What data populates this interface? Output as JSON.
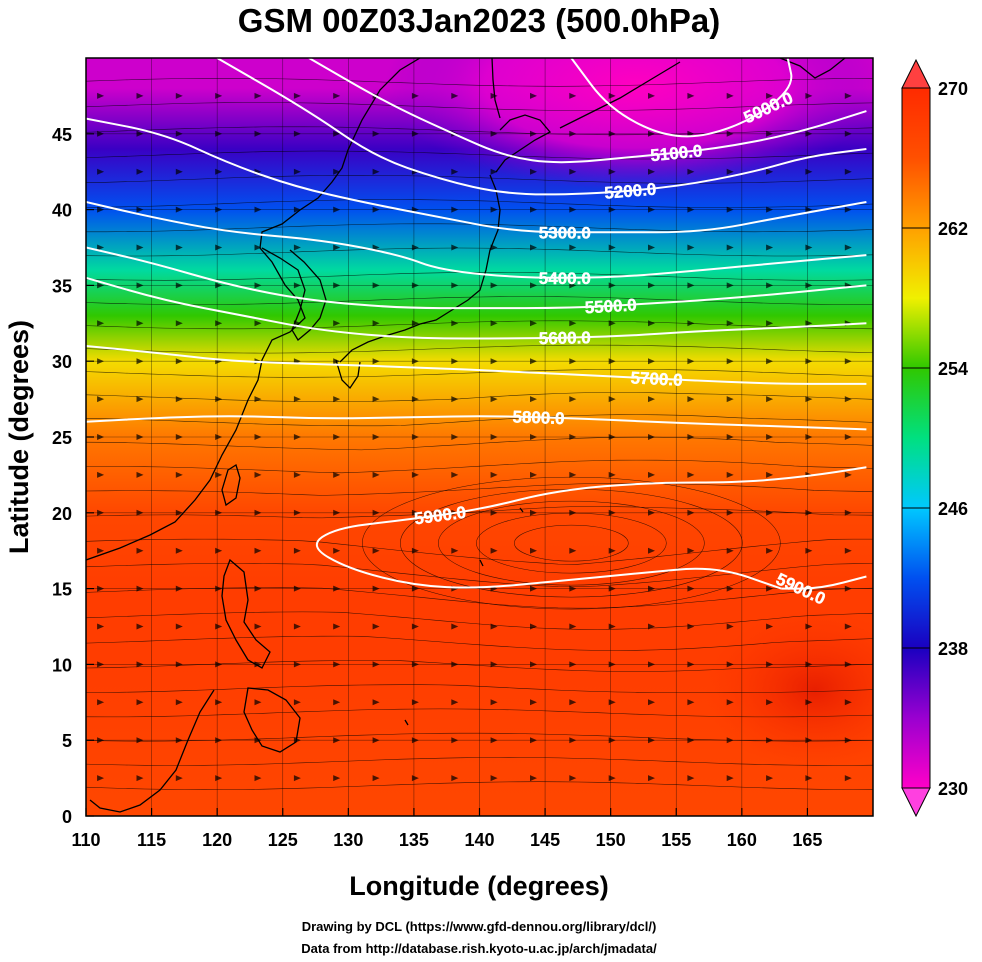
{
  "title": "GSM 00Z03Jan2023 (500.0hPa)",
  "credits": {
    "line1": "Drawing by DCL (https://www.gfd-dennou.org/library/dcl/)",
    "line2": "Data from http://database.rish.kyoto-u.ac.jp/arch/jmadata/"
  },
  "chart_data": {
    "type": "heatmap",
    "title": "GSM 00Z03Jan2023 (500.0hPa)",
    "xlabel": "Longitude (degrees)",
    "ylabel": "Latitude  (degrees)",
    "xlim": [
      110,
      170
    ],
    "ylim": [
      0,
      50
    ],
    "x_ticks": [
      110,
      115,
      120,
      125,
      130,
      135,
      140,
      145,
      150,
      155,
      160,
      165
    ],
    "y_ticks": [
      0,
      5,
      10,
      15,
      20,
      25,
      30,
      35,
      40,
      45
    ],
    "grid": true,
    "shaded_field": {
      "quantity": "temperature",
      "colorbar_ticks": [
        230,
        238,
        246,
        254,
        262,
        270
      ],
      "range": [
        230,
        270
      ],
      "colormap": [
        "#ff00c8",
        "#9a00d0",
        "#1a00c0",
        "#0050f0",
        "#00c8ff",
        "#00e080",
        "#30c800",
        "#f0f000",
        "#ffa000",
        "#ff5000",
        "#ff2a00"
      ],
      "approx_values_by_latitude": [
        {
          "lat": 0,
          "value": 267
        },
        {
          "lat": 10,
          "value": 268
        },
        {
          "lat": 15,
          "value": 268
        },
        {
          "lat": 20,
          "value": 267
        },
        {
          "lat": 25,
          "value": 264
        },
        {
          "lat": 30,
          "value": 259
        },
        {
          "lat": 33,
          "value": 254
        },
        {
          "lat": 36,
          "value": 249
        },
        {
          "lat": 40,
          "value": 242
        },
        {
          "lat": 44,
          "value": 237
        },
        {
          "lat": 48,
          "value": 232
        }
      ]
    },
    "contours": {
      "quantity": "geopotential height",
      "levels": [
        {
          "label": "5000.0",
          "points": [
            [
              147,
              50
            ],
            [
              150,
              46.5
            ],
            [
              155,
              44.5
            ],
            [
              160,
              45.5
            ],
            [
              164,
              48
            ],
            [
              163.5,
              50
            ]
          ]
        },
        {
          "label": "5100.0",
          "points": [
            [
              127,
              50
            ],
            [
              133,
              47
            ],
            [
              138,
              45
            ],
            [
              142,
              43.5
            ],
            [
              146,
              43
            ],
            [
              152,
              43.5
            ],
            [
              158,
              44
            ],
            [
              164,
              45
            ],
            [
              169.5,
              46.5
            ]
          ]
        },
        {
          "label": "5200.0",
          "points": [
            [
              120,
              50
            ],
            [
              127,
              46.5
            ],
            [
              132,
              43.5
            ],
            [
              137,
              42
            ],
            [
              142,
              41
            ],
            [
              148,
              41
            ],
            [
              155,
              41.5
            ],
            [
              161,
              42.5
            ],
            [
              165,
              43.5
            ],
            [
              169.5,
              44
            ]
          ]
        },
        {
          "label": "5300.0",
          "points": [
            [
              110,
              46
            ],
            [
              116,
              45
            ],
            [
              121,
              43
            ],
            [
              126,
              41.5
            ],
            [
              131,
              40.5
            ],
            [
              137,
              39.5
            ],
            [
              143,
              38.5
            ],
            [
              150,
              38.5
            ],
            [
              157,
              38.5
            ],
            [
              163,
              39.5
            ],
            [
              169.5,
              40.5
            ]
          ]
        },
        {
          "label": "5400.0",
          "points": [
            [
              110,
              40.5
            ],
            [
              115,
              39.5
            ],
            [
              121,
              38.5
            ],
            [
              128,
              38
            ],
            [
              134,
              37
            ],
            [
              137,
              36
            ],
            [
              143,
              35.5
            ],
            [
              150,
              35.5
            ],
            [
              157,
              36
            ],
            [
              163,
              36.5
            ],
            [
              169.5,
              37
            ]
          ]
        },
        {
          "label": "5500.0",
          "points": [
            [
              110,
              37.5
            ],
            [
              115,
              36.5
            ],
            [
              121,
              35
            ],
            [
              127,
              34
            ],
            [
              134,
              33.5
            ],
            [
              140,
              33.5
            ],
            [
              147,
              33.5
            ],
            [
              153,
              33.8
            ],
            [
              160,
              34.2
            ],
            [
              169.5,
              35
            ]
          ]
        },
        {
          "label": "5600.0",
          "points": [
            [
              110,
              35.5
            ],
            [
              116,
              34
            ],
            [
              122,
              33
            ],
            [
              128,
              32
            ],
            [
              135,
              31.5
            ],
            [
              143,
              31.5
            ],
            [
              150,
              31.6
            ],
            [
              157,
              32
            ],
            [
              163,
              32.2
            ],
            [
              169.5,
              32.5
            ]
          ]
        },
        {
          "label": "5700.0",
          "points": [
            [
              110,
              31
            ],
            [
              116,
              30.5
            ],
            [
              121,
              30
            ],
            [
              128,
              29.8
            ],
            [
              135,
              29.6
            ],
            [
              143,
              29.3
            ],
            [
              150,
              29
            ],
            [
              157,
              28.7
            ],
            [
              163,
              28.5
            ],
            [
              169.5,
              28.5
            ]
          ]
        },
        {
          "label": "5800.0",
          "points": [
            [
              110,
              26
            ],
            [
              116,
              26.3
            ],
            [
              122,
              26.4
            ],
            [
              128,
              26.2
            ],
            [
              135,
              26.3
            ],
            [
              141,
              26.4
            ],
            [
              148,
              26.2
            ],
            [
              156,
              25.9
            ],
            [
              163,
              25.7
            ],
            [
              169.5,
              25.5
            ]
          ]
        },
        {
          "label": "5900.0",
          "points": [
            [
              163,
              15
            ],
            [
              158,
              16.5
            ],
            [
              152,
              16
            ],
            [
              146,
              15.5
            ],
            [
              140,
              15
            ],
            [
              135,
              15.2
            ],
            [
              130,
              16.3
            ],
            [
              127,
              17.8
            ],
            [
              129,
              19
            ],
            [
              134,
              19.5
            ],
            [
              140,
              20.2
            ],
            [
              146,
              21.5
            ],
            [
              153,
              22
            ],
            [
              160,
              22
            ],
            [
              165,
              22.4
            ],
            [
              169.5,
              23
            ]
          ]
        },
        {
          "label": "5900.0",
          "points": [
            [
              169.5,
              15.8
            ],
            [
              166,
              15
            ],
            [
              163,
              15
            ]
          ]
        }
      ],
      "labels_shown": [
        "5000.0",
        "5100.0",
        "5200.0",
        "5300.0",
        "5400.0",
        "5500.0",
        "5600.0",
        "5700.0",
        "5800.0",
        "5900.0",
        "5900.0"
      ]
    },
    "vectors": {
      "quantity": "wind streamlines",
      "dominant_direction": "westerly",
      "anticyclone_centre": [
        147,
        18
      ]
    }
  }
}
